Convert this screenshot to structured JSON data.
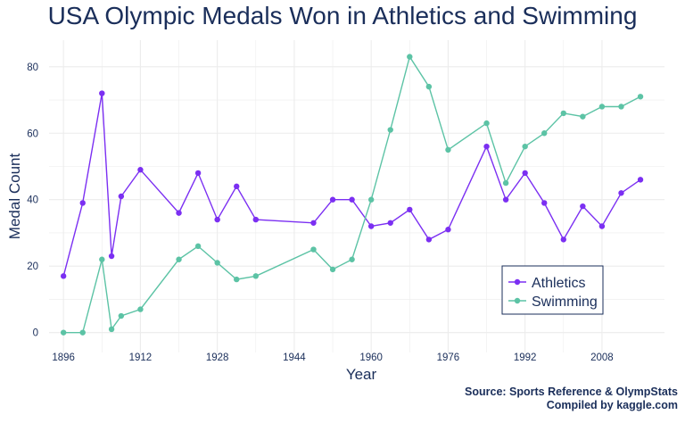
{
  "colors": {
    "athletics": "#7b2ff2",
    "swimming": "#5cc3a5",
    "text": "#1a2e5a",
    "grid": "#ececec"
  },
  "chart_data": {
    "type": "line",
    "title": "USA Olympic Medals Won in Athletics and Swimming",
    "xlabel": "Year",
    "ylabel": "Medal Count",
    "xlim": [
      1893,
      2021
    ],
    "ylim": [
      -6,
      88
    ],
    "xticks": [
      1896,
      1912,
      1928,
      1944,
      1960,
      1976,
      1992,
      2008
    ],
    "yticks": [
      0,
      20,
      40,
      60,
      80
    ],
    "grid": true,
    "legend_position": "bottom-right",
    "series": [
      {
        "name": "Athletics",
        "x": [
          1896,
          1900,
          1904,
          1906,
          1908,
          1912,
          1920,
          1924,
          1928,
          1932,
          1936,
          1948,
          1952,
          1956,
          1960,
          1964,
          1968,
          1972,
          1976,
          1984,
          1988,
          1992,
          1996,
          2000,
          2004,
          2008,
          2012,
          2016
        ],
        "values": [
          17,
          39,
          72,
          23,
          41,
          49,
          36,
          48,
          34,
          44,
          34,
          33,
          40,
          40,
          32,
          33,
          37,
          28,
          31,
          56,
          40,
          48,
          39,
          28,
          38,
          32,
          42,
          46
        ]
      },
      {
        "name": "Swimming",
        "x": [
          1896,
          1900,
          1904,
          1906,
          1908,
          1912,
          1920,
          1924,
          1928,
          1932,
          1936,
          1948,
          1952,
          1956,
          1960,
          1964,
          1968,
          1972,
          1976,
          1984,
          1988,
          1992,
          1996,
          2000,
          2004,
          2008,
          2012,
          2016
        ],
        "values": [
          0,
          0,
          22,
          1,
          5,
          7,
          22,
          26,
          21,
          16,
          17,
          25,
          19,
          22,
          40,
          61,
          83,
          74,
          55,
          63,
          45,
          56,
          60,
          66,
          65,
          68,
          68,
          71
        ]
      }
    ]
  },
  "source_line1": "Source: Sports Reference & OlympStats",
  "source_line2": "Compiled by kaggle.com"
}
